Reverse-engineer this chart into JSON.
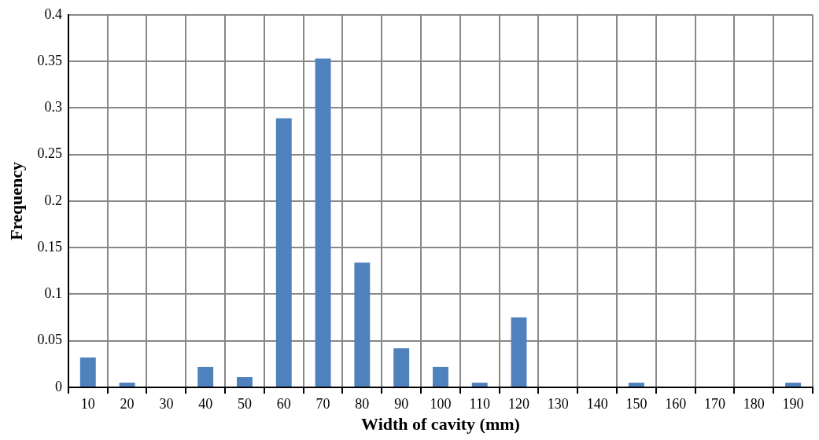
{
  "chart_data": {
    "type": "bar",
    "xlabel": "Width of cavity (mm)",
    "ylabel": "Frequency",
    "categories": [
      "10",
      "20",
      "30",
      "40",
      "50",
      "60",
      "70",
      "80",
      "90",
      "100",
      "110",
      "120",
      "130",
      "140",
      "150",
      "160",
      "170",
      "180",
      "190"
    ],
    "values": [
      0.032,
      0.005,
      0,
      0.022,
      0.011,
      0.289,
      0.353,
      0.134,
      0.042,
      0.022,
      0.005,
      0.075,
      0,
      0,
      0.005,
      0,
      0,
      0,
      0.005
    ],
    "color": "#4f81bd",
    "ylim": [
      0,
      0.4
    ],
    "yticks": [
      0,
      0.05,
      0.1,
      0.15,
      0.2,
      0.25,
      0.3,
      0.35,
      0.4
    ],
    "grid": true,
    "legend": false
  }
}
